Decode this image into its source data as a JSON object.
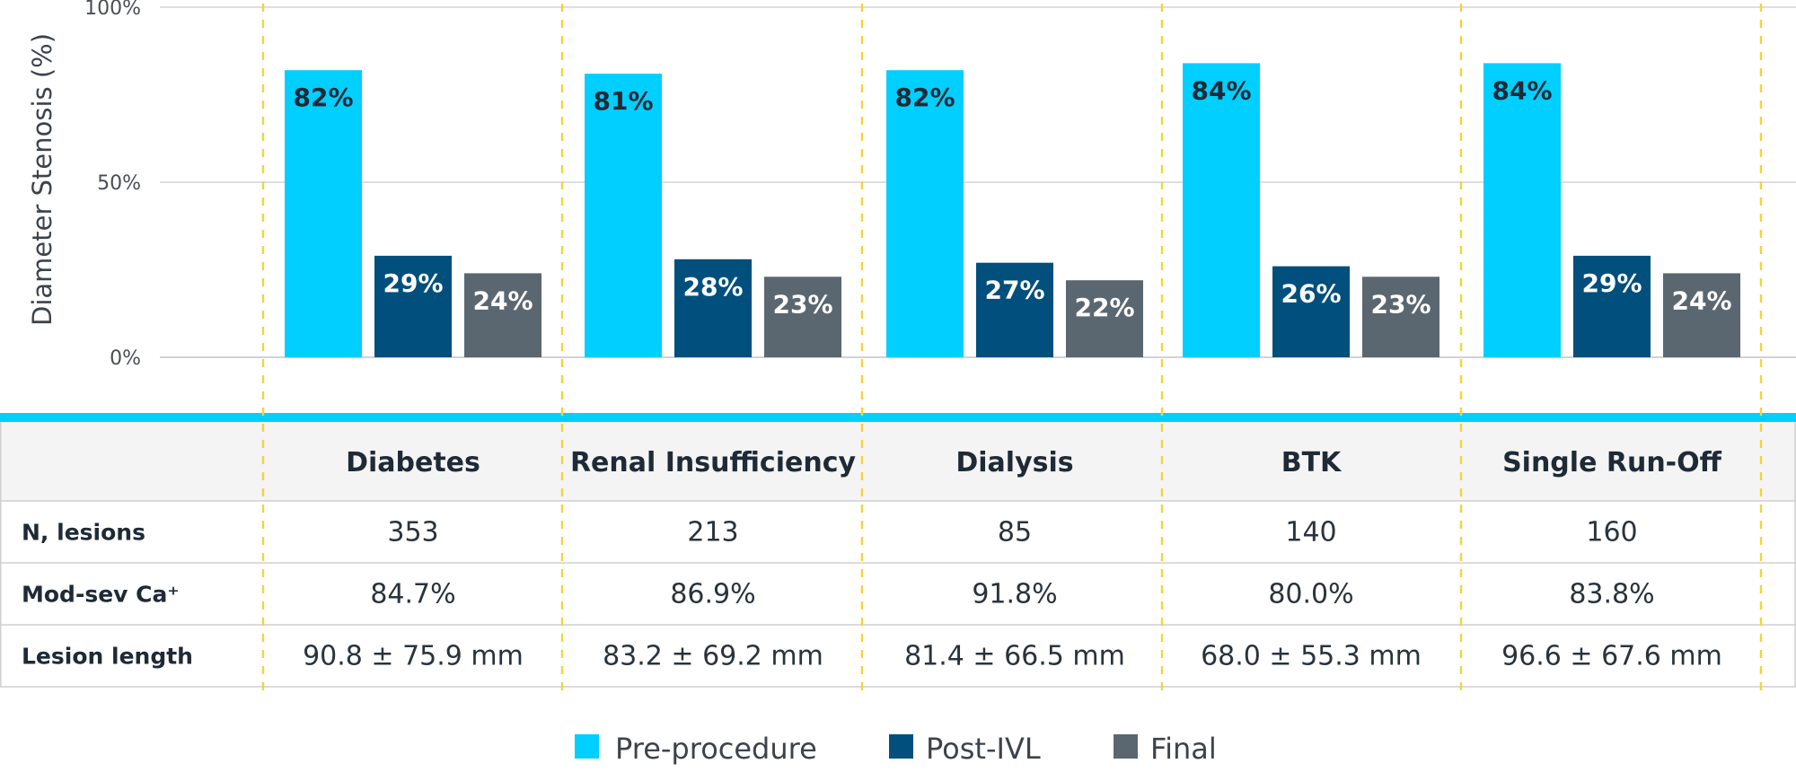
{
  "chart_data": {
    "type": "bar",
    "categories": [
      "Diabetes",
      "Renal Insufficiency",
      "Dialysis",
      "BTK",
      "Single Run-Off"
    ],
    "series": [
      {
        "name": "Pre-procedure",
        "values": [
          82,
          81,
          82,
          84,
          84
        ],
        "labels": [
          "82%",
          "81%",
          "82%",
          "84%",
          "84%"
        ],
        "color": "#00cfff",
        "label_color": "#1f2a36"
      },
      {
        "name": "Post-IVL",
        "values": [
          29,
          28,
          27,
          26,
          29
        ],
        "labels": [
          "29%",
          "28%",
          "27%",
          "26%",
          "29%"
        ],
        "color": "#004f7c",
        "label_color": "#ffffff"
      },
      {
        "name": "Final",
        "values": [
          24,
          23,
          22,
          23,
          24
        ],
        "labels": [
          "24%",
          "23%",
          "22%",
          "23%",
          "24%"
        ],
        "color": "#5b6770",
        "label_color": "#ffffff"
      }
    ],
    "ylabel": "Diameter Stenosis (%)",
    "ylim": [
      0,
      100
    ],
    "yticks": [
      0,
      50,
      100
    ],
    "ytick_labels": [
      "0%",
      "50%",
      "100%"
    ],
    "grid": true,
    "legend_placement": "bottom-center"
  },
  "table": {
    "columns": [
      "Diabetes",
      "Renal Insufficiency",
      "Dialysis",
      "BTK",
      "Single Run-Off"
    ],
    "rows": [
      {
        "label": "N, lesions",
        "values": [
          "353",
          "213",
          "85",
          "140",
          "160"
        ]
      },
      {
        "label": "Mod-sev Ca⁺",
        "values": [
          "84.7%",
          "86.9%",
          "91.8%",
          "80.0%",
          "83.8%"
        ]
      },
      {
        "label": "Lesion length",
        "values": [
          "90.8 ± 75.9 mm",
          "83.2 ± 69.2 mm",
          "81.4 ± 66.5 mm",
          "68.0 ± 55.3 mm",
          "96.6 ± 67.6 mm"
        ]
      }
    ]
  },
  "colors": {
    "accent_band": "#00cfff",
    "divider_dashed": "#f5d33a",
    "header_fill": "#f4f4f4",
    "grid": "#c8ccd0"
  }
}
